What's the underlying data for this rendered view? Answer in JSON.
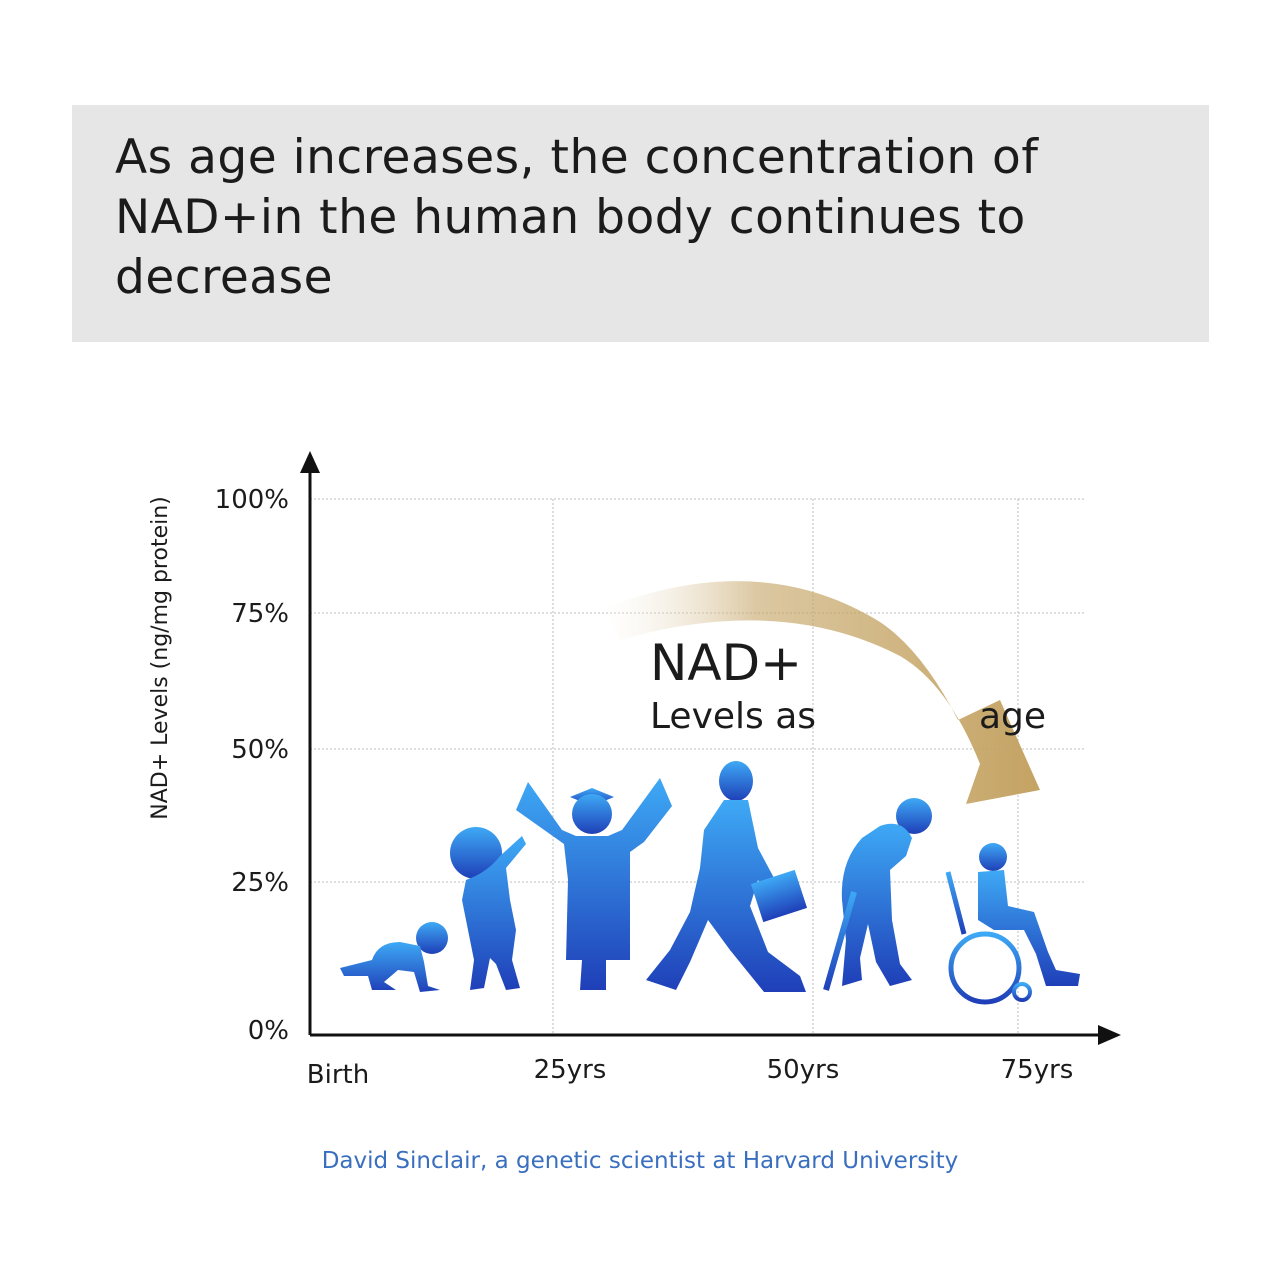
{
  "header": {
    "title": "As age increases, the concentration of NAD+in the human body continues to decrease"
  },
  "chart_data": {
    "type": "line",
    "title": "",
    "xlabel": "",
    "ylabel": "NAD+ Levels (ng/mg protein)",
    "x_ticks": [
      "Birth",
      "25yrs",
      "50yrs",
      "75yrs"
    ],
    "y_ticks": [
      "0%",
      "25%",
      "50%",
      "75%",
      "100%"
    ],
    "y_tick_values": [
      0,
      25,
      50,
      75,
      100
    ],
    "ylim": [
      0,
      100
    ],
    "grid": true,
    "annotation": {
      "line1": "NAD+",
      "line2a": "Levels as",
      "line2b": "age"
    },
    "illustration": [
      "baby-crawling",
      "child",
      "graduate",
      "walking-adult",
      "elderly-with-cane",
      "person-in-wheelchair"
    ],
    "colors": {
      "figure_top": "#3ea9f5",
      "figure_bottom": "#1f3fb8",
      "arrow_start": "#ffffff",
      "arrow_end": "#c4a363"
    }
  },
  "source": "David Sinclair, a genetic scientist at Harvard University"
}
